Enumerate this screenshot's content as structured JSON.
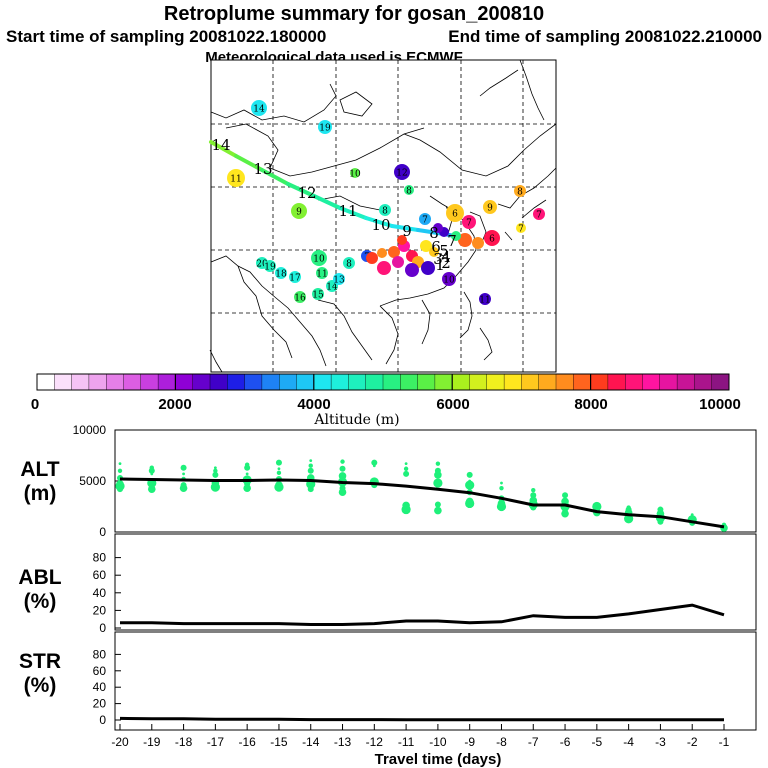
{
  "header": {
    "title": "Retroplume summary for gosan_200810",
    "start": "Start time of sampling 20081022.180000",
    "end": "End time of sampling 20081022.210000",
    "met": "Meteorological data used is ECMWF"
  },
  "colorbar": {
    "title": "Altitude (m)",
    "ticks": [
      "0",
      "2000",
      "4000",
      "6000",
      "8000",
      "10000"
    ],
    "range": [
      0,
      10000
    ],
    "colors": [
      "#ffffff",
      "#fbe0fb",
      "#f5c3f5",
      "#eea3ee",
      "#e57fe8",
      "#dc5ee3",
      "#c93fe0",
      "#ad1fdb",
      "#8f00d6",
      "#6600cc",
      "#4000c8",
      "#1e1ee6",
      "#1e50f0",
      "#1e82f5",
      "#1eaaf5",
      "#1ec8f5",
      "#1ee6f0",
      "#1ef0dc",
      "#1ef0be",
      "#1ef0a0",
      "#28f082",
      "#3cf064",
      "#5af046",
      "#82f032",
      "#aaf01e",
      "#d2f01e",
      "#f0f01e",
      "#ffe61e",
      "#ffc81e",
      "#ffaa1e",
      "#ff8c1e",
      "#ff641e",
      "#ff3c1e",
      "#ff1450",
      "#ff1478",
      "#ff14a0",
      "#e614a0",
      "#c81496",
      "#aa148c",
      "#8c1482"
    ]
  },
  "map": {
    "labels": [
      "14",
      "13",
      "12",
      "11",
      "10",
      "9",
      "8",
      "7",
      "6",
      "5",
      "4",
      "3",
      "2",
      "1"
    ],
    "cluster_numbers": [
      "14",
      "19",
      "11",
      "10",
      "12",
      "8",
      "9",
      "8",
      "7",
      "6",
      "9",
      "7",
      "8",
      "7",
      "20",
      "19",
      "18",
      "17",
      "16",
      "15",
      "14",
      "13",
      "11",
      "10",
      "8",
      "7",
      "7",
      "6",
      "10",
      "11"
    ],
    "cluster_values_m": [
      4200,
      4000,
      6800,
      5600,
      2600,
      5000,
      5800,
      4600,
      3600,
      7000,
      7200,
      8500,
      7400,
      6900,
      4600,
      4700,
      4300,
      4400,
      5300,
      4800,
      4500,
      4000,
      5000,
      5200,
      4600,
      3100,
      8600,
      8400,
      2300,
      2700
    ]
  },
  "chart_data": [
    {
      "type": "scatter+line",
      "panel": "ALT",
      "ylabel": "ALT (m)",
      "ylim": [
        0,
        10000
      ],
      "yticks": [
        "0",
        "5000",
        "10000"
      ],
      "x": [
        -20,
        -19,
        -18,
        -17,
        -16,
        -15,
        -14,
        -13,
        -12,
        -11,
        -10,
        -9,
        -8,
        -7,
        -6,
        -5,
        -4,
        -3,
        -2,
        -1
      ],
      "median_line": [
        5200,
        5150,
        5100,
        5050,
        5050,
        5100,
        5050,
        4850,
        4750,
        4500,
        4200,
        3850,
        3300,
        2650,
        2650,
        2000,
        1700,
        1500,
        1000,
        500
      ],
      "points": [
        {
          "x": -20,
          "y": [
            6700,
            6000,
            5300,
            4700,
            4500,
            4200
          ]
        },
        {
          "x": -19,
          "y": [
            6300,
            6000,
            5700,
            4800,
            4400,
            4200
          ]
        },
        {
          "x": -18,
          "y": [
            6300,
            5700,
            5200,
            4600,
            4300
          ]
        },
        {
          "x": -17,
          "y": [
            6300,
            6000,
            5600,
            4800,
            4400
          ]
        },
        {
          "x": -16,
          "y": [
            6600,
            6300,
            5700,
            5100,
            4700,
            4300
          ]
        },
        {
          "x": -15,
          "y": [
            6800,
            6200,
            5800,
            5200,
            4600,
            4400
          ]
        },
        {
          "x": -14,
          "y": [
            7000,
            6500,
            6000,
            5300,
            4700,
            4200
          ]
        },
        {
          "x": -13,
          "y": [
            6900,
            6200,
            5500,
            4900,
            4300,
            3900
          ]
        },
        {
          "x": -12,
          "y": [
            6800,
            6500,
            4900,
            4600
          ]
        },
        {
          "x": -11,
          "y": [
            6700,
            6200,
            5700,
            2600,
            2200
          ]
        },
        {
          "x": -10,
          "y": [
            6700,
            6000,
            5600,
            4800,
            2700,
            2100
          ]
        },
        {
          "x": -9,
          "y": [
            5600,
            5000,
            4600,
            3900,
            3000,
            2800
          ]
        },
        {
          "x": -8,
          "y": [
            4800,
            4300,
            3300,
            2800,
            2500
          ]
        },
        {
          "x": -7,
          "y": [
            4100,
            3600,
            3100,
            2700,
            2400
          ]
        },
        {
          "x": -6,
          "y": [
            3600,
            3000,
            2500,
            2200,
            1800
          ]
        },
        {
          "x": -5,
          "y": [
            2800,
            2500,
            2200,
            1900
          ]
        },
        {
          "x": -4,
          "y": [
            2400,
            2200,
            1900,
            1300
          ]
        },
        {
          "x": -3,
          "y": [
            2200,
            1800,
            1400,
            1000
          ]
        },
        {
          "x": -2,
          "y": [
            1700,
            1200,
            900
          ]
        },
        {
          "x": -1,
          "y": [
            700,
            500,
            400
          ]
        }
      ],
      "point_color": "#1ef07a"
    },
    {
      "type": "line",
      "panel": "ABL",
      "ylabel": "ABL (%)",
      "ylim": [
        0,
        100
      ],
      "yticks": [
        "0",
        "20",
        "40",
        "60",
        "80"
      ],
      "x": [
        -20,
        -19,
        -18,
        -17,
        -16,
        -15,
        -14,
        -13,
        -12,
        -11,
        -10,
        -9,
        -8,
        -7,
        -6,
        -5,
        -4,
        -3,
        -2,
        -1
      ],
      "values": [
        6,
        6,
        5,
        5,
        5,
        5,
        4,
        4,
        5,
        8,
        8,
        6,
        7,
        14,
        12,
        12,
        16,
        21,
        26,
        15
      ]
    },
    {
      "type": "line",
      "panel": "STR",
      "ylabel": "STR (%)",
      "ylim": [
        0,
        100
      ],
      "yticks": [
        "0",
        "20",
        "40",
        "60",
        "80"
      ],
      "x": [
        -20,
        -19,
        -18,
        -17,
        -16,
        -15,
        -14,
        -13,
        -12,
        -11,
        -10,
        -9,
        -8,
        -7,
        -6,
        -5,
        -4,
        -3,
        -2,
        -1
      ],
      "values": [
        2,
        1.5,
        1.5,
        1,
        1,
        1,
        0.5,
        0.5,
        0.5,
        0.3,
        0.3,
        0.3,
        0.2,
        0.2,
        0.2,
        0.2,
        0.2,
        0.2,
        0.2,
        0.2
      ]
    }
  ],
  "x_axis": {
    "label": "Travel time (days)",
    "ticks": [
      "-20",
      "-19",
      "-18",
      "-17",
      "-16",
      "-15",
      "-14",
      "-13",
      "-12",
      "-11",
      "-10",
      "-9",
      "-8",
      "-7",
      "-6",
      "-5",
      "-4",
      "-3",
      "-2",
      "-1"
    ]
  },
  "panel_labels": {
    "alt": [
      "ALT",
      "(m)"
    ],
    "abl": [
      "ABL",
      "(%)"
    ],
    "str": [
      "STR",
      "(%)"
    ]
  }
}
